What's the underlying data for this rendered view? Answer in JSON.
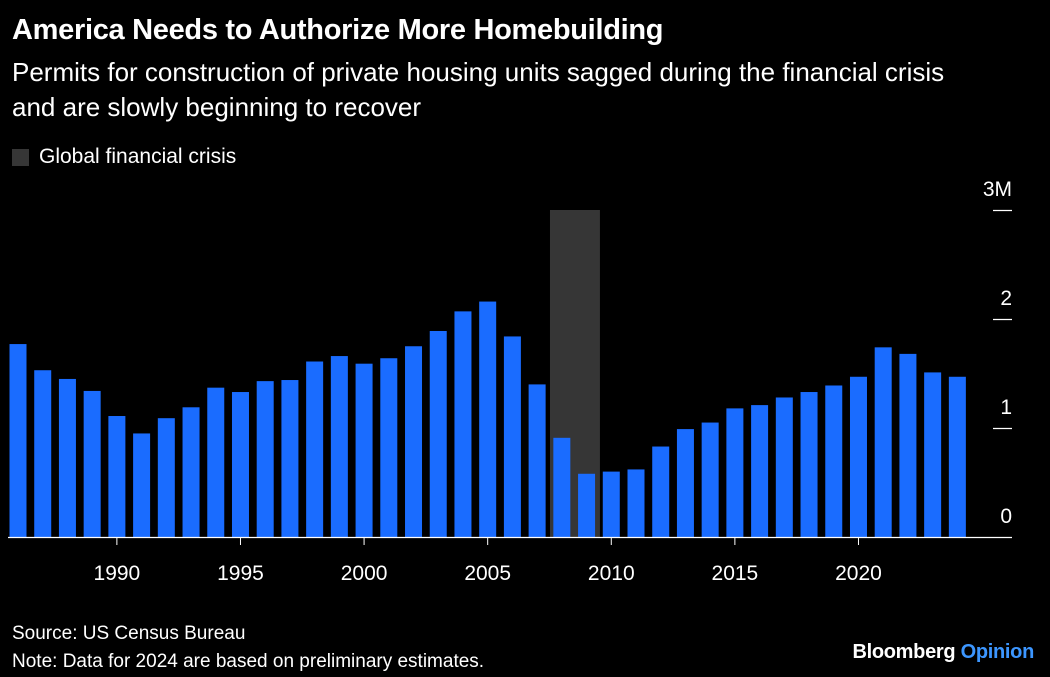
{
  "title": "America Needs to Authorize More Homebuilding",
  "subtitle": "Permits for construction of private housing units sagged during the financial crisis and are slowly beginning to recover",
  "legend": {
    "label": "Global financial crisis",
    "color": "#363636"
  },
  "footer": {
    "source": "Source: US Census Bureau",
    "note": "Note: Data for 2024 are based on preliminary estimates."
  },
  "brand": {
    "name": "Bloomberg",
    "accent": "Opinion"
  },
  "chart_data": {
    "type": "bar",
    "x": [
      1986,
      1987,
      1988,
      1989,
      1990,
      1991,
      1992,
      1993,
      1994,
      1995,
      1996,
      1997,
      1998,
      1999,
      2000,
      2001,
      2002,
      2003,
      2004,
      2005,
      2006,
      2007,
      2008,
      2009,
      2010,
      2011,
      2012,
      2013,
      2014,
      2015,
      2016,
      2017,
      2018,
      2019,
      2020,
      2021,
      2022,
      2023,
      2024
    ],
    "values": [
      1.77,
      1.53,
      1.45,
      1.34,
      1.11,
      0.95,
      1.09,
      1.19,
      1.37,
      1.33,
      1.43,
      1.44,
      1.61,
      1.66,
      1.59,
      1.64,
      1.75,
      1.89,
      2.07,
      2.16,
      1.84,
      1.4,
      0.91,
      0.58,
      0.6,
      0.62,
      0.83,
      0.99,
      1.05,
      1.18,
      1.21,
      1.28,
      1.33,
      1.39,
      1.47,
      1.74,
      1.68,
      1.51,
      1.47
    ],
    "shaded_region": {
      "label": "Global financial crisis",
      "start": 2007,
      "end": 2009
    },
    "xticks": [
      "1990",
      "1995",
      "2000",
      "2005",
      "2010",
      "2015",
      "2020"
    ],
    "yticks": [
      "0",
      "1",
      "2",
      "3M"
    ],
    "ylim": [
      0,
      3
    ],
    "y_axis_side": "right",
    "grid": false,
    "bar_color": "#1a6cff",
    "shade_color": "#363636",
    "axis_color": "#ffffff"
  }
}
